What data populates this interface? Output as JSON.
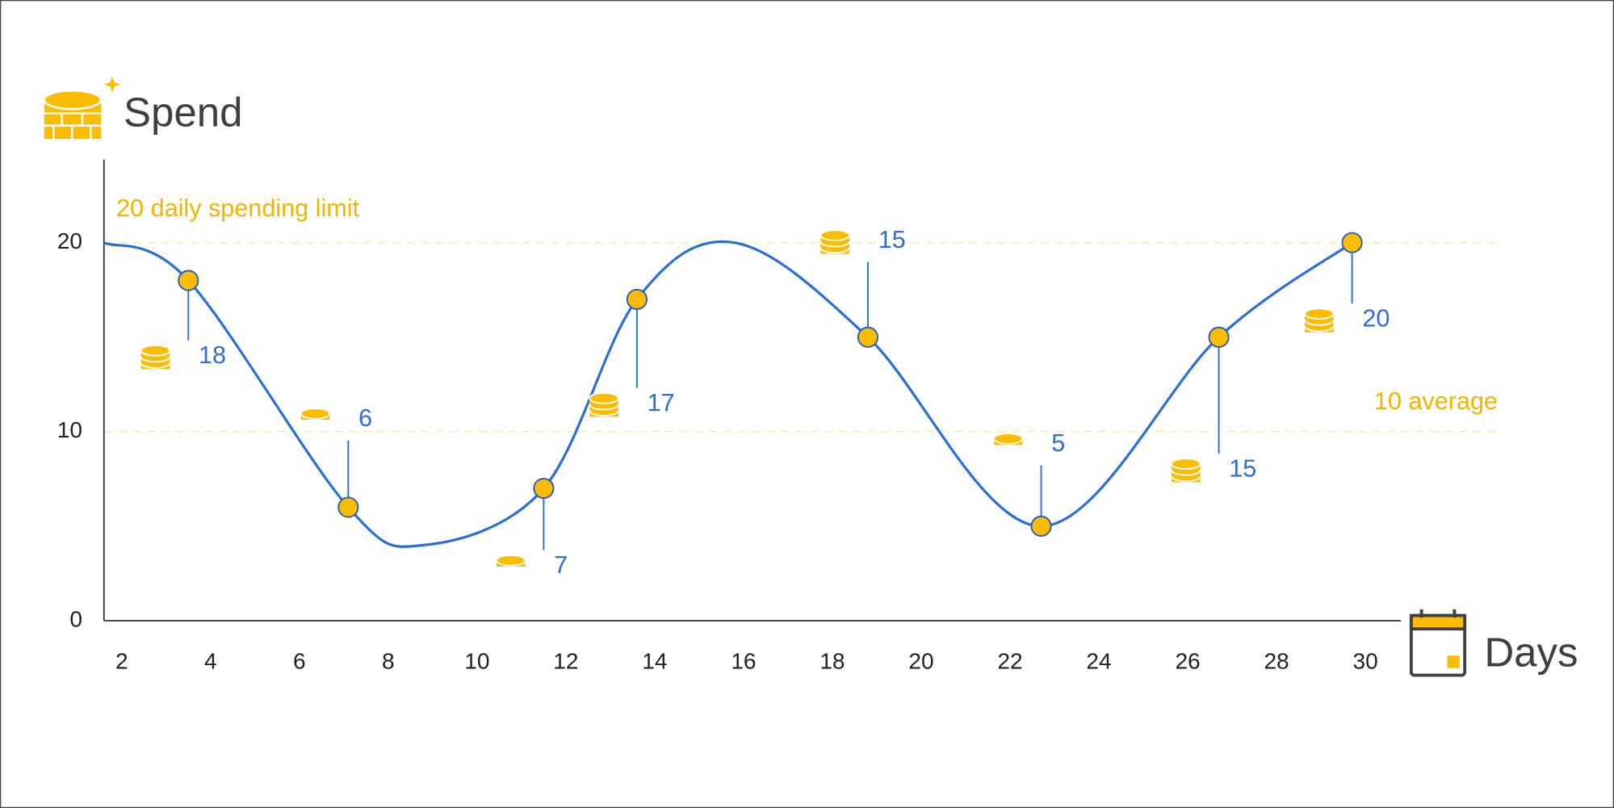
{
  "chart_data": {
    "type": "line",
    "y_label": "Spend",
    "x_label": "Days",
    "xlim": [
      1.6,
      30.8
    ],
    "xticks": [
      2,
      4,
      6,
      8,
      10,
      12,
      14,
      16,
      18,
      20,
      22,
      24,
      26,
      28,
      30
    ],
    "ylim": [
      0,
      24.4
    ],
    "yticks": [
      0,
      10,
      20
    ],
    "reference_lines": [
      {
        "value": 20,
        "label": "20 daily spending limit"
      },
      {
        "value": 10,
        "label": "10 average"
      }
    ],
    "curve": {
      "color": "#2a6fd6",
      "x": [
        1.6,
        3.5,
        7.1,
        8.8,
        11.5,
        13.6,
        15.8,
        18.8,
        22.7,
        26.7,
        29.7
      ],
      "values": [
        20,
        18,
        6,
        4,
        7,
        17,
        20,
        15,
        5,
        15,
        20
      ]
    },
    "points": {
      "color": "#fbbc04",
      "x": [
        3.5,
        7.1,
        11.5,
        13.6,
        18.8,
        22.7,
        26.7,
        29.7
      ],
      "values": [
        18,
        6,
        7,
        17,
        15,
        5,
        15,
        20
      ]
    }
  }
}
